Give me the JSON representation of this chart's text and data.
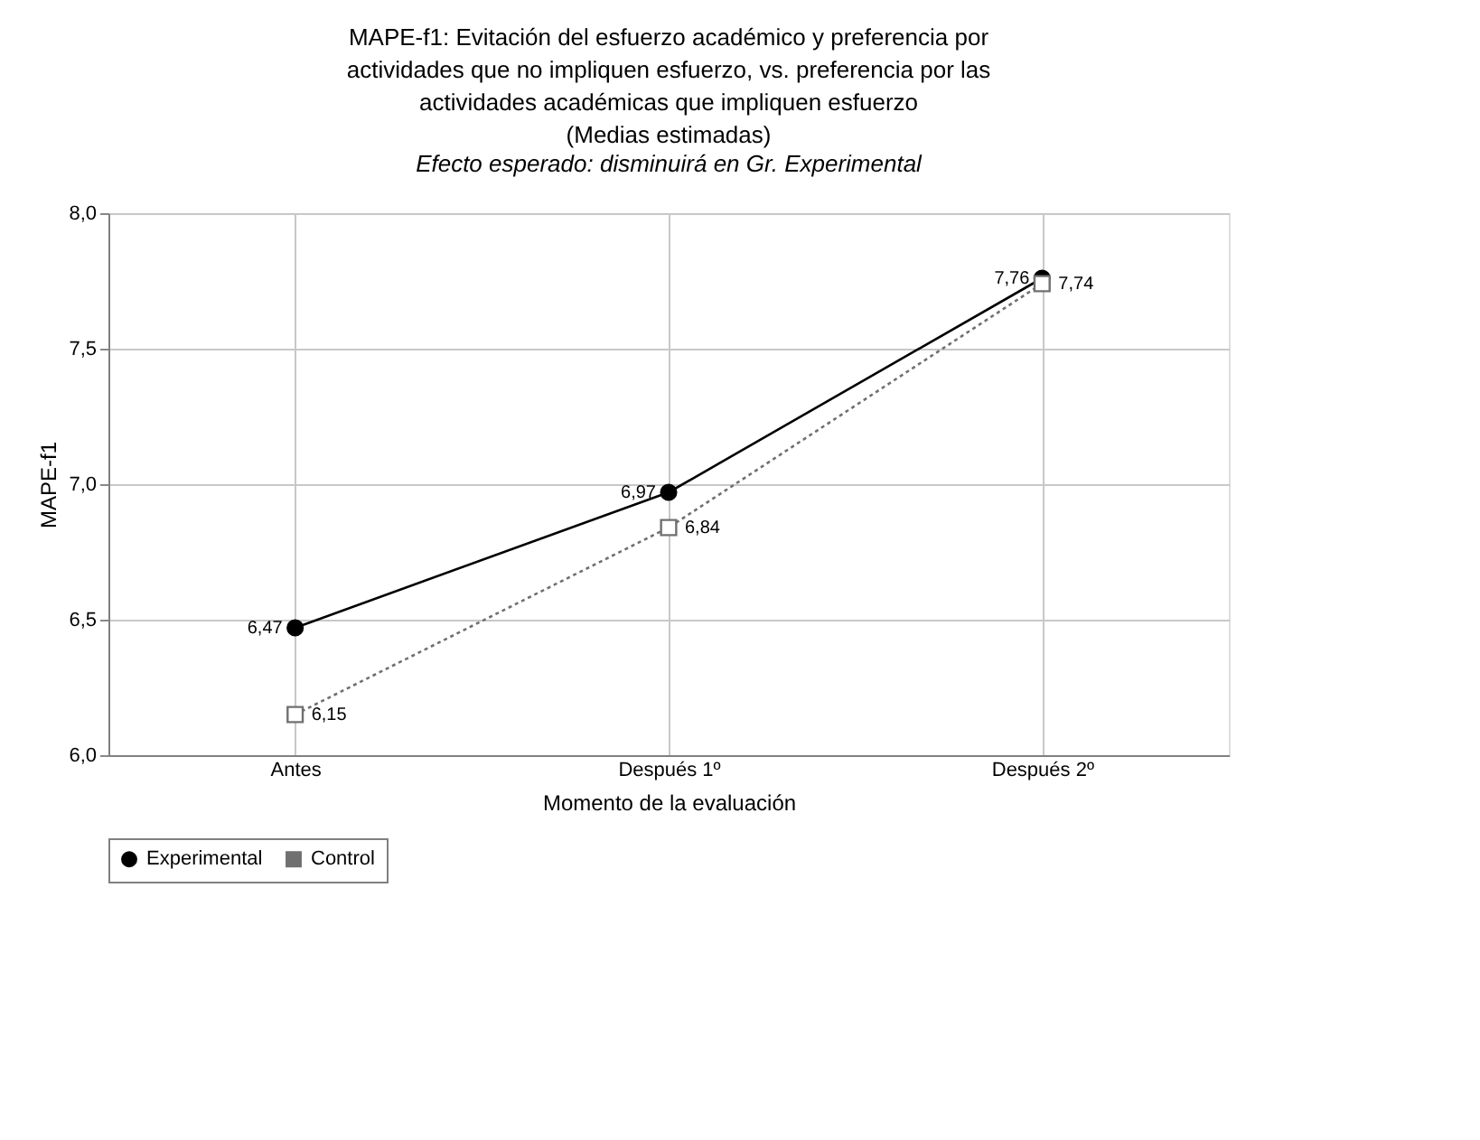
{
  "chart_data": {
    "type": "line",
    "title": "MAPE-f1: Evitación del esfuerzo académico y preferencia por\nactividades que no impliquen esfuerzo, vs. preferencia por las\nactividades académicas que impliquen esfuerzo\n(Medias estimadas)",
    "subtitle": "Efecto esperado: disminuirá en Gr. Experimental",
    "xlabel": "Momento de la evaluación",
    "ylabel": "MAPE-f1",
    "categories": [
      "Antes",
      "Después 1º",
      "Después 2º"
    ],
    "series": [
      {
        "name": "Experimental",
        "color": "#000000",
        "values": [
          6.47,
          6.97,
          7.76
        ],
        "value_labels": [
          "6,47",
          "6,97",
          "7,76"
        ],
        "marker": "circle",
        "line_style": "solid"
      },
      {
        "name": "Control",
        "color": "#707070",
        "values": [
          6.15,
          6.84,
          7.74
        ],
        "value_labels": [
          "6,15",
          "6,84",
          "7,74"
        ],
        "marker": "square",
        "line_style": "dotted"
      }
    ],
    "ylim": [
      6,
      8
    ],
    "yticks": [
      {
        "value": 6,
        "label": "6,0"
      },
      {
        "value": 6.5,
        "label": "6,5"
      },
      {
        "value": 7,
        "label": "7,0"
      },
      {
        "value": 7.5,
        "label": "7,5"
      },
      {
        "value": 8,
        "label": "8,0"
      }
    ],
    "grid": true,
    "legend": "bottom"
  }
}
